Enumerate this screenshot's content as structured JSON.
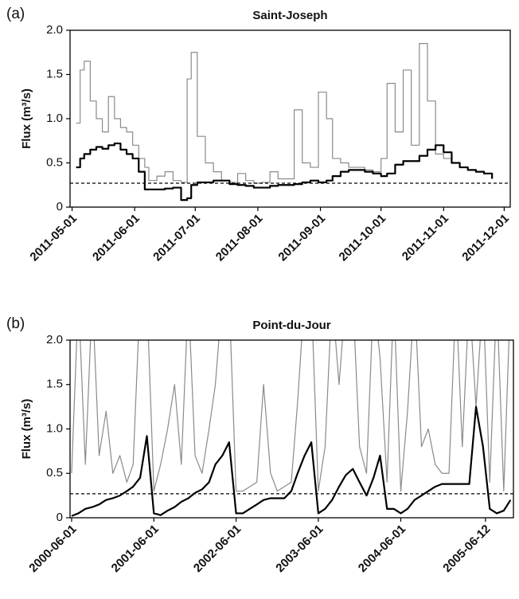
{
  "chart_data": [
    {
      "type": "line",
      "panel_label": "(a)",
      "title": "Saint-Joseph",
      "y_label": "Flux (m³/s)",
      "x": [
        "2011-05-03",
        "2011-05-05",
        "2011-05-07",
        "2011-05-10",
        "2011-05-13",
        "2011-05-16",
        "2011-05-19",
        "2011-05-22",
        "2011-05-25",
        "2011-05-28",
        "2011-05-31",
        "2011-06-03",
        "2011-06-06",
        "2011-06-08",
        "2011-06-12",
        "2011-06-16",
        "2011-06-20",
        "2011-06-24",
        "2011-06-27",
        "2011-06-29",
        "2011-07-02",
        "2011-07-06",
        "2011-07-10",
        "2011-07-14",
        "2011-07-18",
        "2011-07-22",
        "2011-07-26",
        "2011-07-30",
        "2011-08-03",
        "2011-08-07",
        "2011-08-11",
        "2011-08-15",
        "2011-08-19",
        "2011-08-23",
        "2011-08-27",
        "2011-08-31",
        "2011-09-04",
        "2011-09-07",
        "2011-09-11",
        "2011-09-15",
        "2011-09-19",
        "2011-09-23",
        "2011-09-27",
        "2011-10-01",
        "2011-10-04",
        "2011-10-08",
        "2011-10-12",
        "2011-10-16",
        "2011-10-20",
        "2011-10-24",
        "2011-10-28",
        "2011-11-01",
        "2011-11-05",
        "2011-11-09",
        "2011-11-13",
        "2011-11-17",
        "2011-11-21",
        "2011-11-25"
      ],
      "series": [
        {
          "color": "#8a8a8a",
          "step": true,
          "values": [
            0.95,
            1.55,
            1.65,
            1.2,
            1.0,
            0.85,
            1.25,
            1.0,
            0.9,
            0.85,
            0.7,
            0.55,
            0.45,
            0.3,
            0.35,
            0.4,
            0.3,
            0.28,
            1.45,
            1.75,
            0.8,
            0.5,
            0.4,
            0.3,
            0.28,
            0.38,
            0.3,
            0.27,
            0.28,
            0.4,
            0.32,
            0.32,
            1.1,
            0.5,
            0.45,
            1.3,
            1.0,
            0.55,
            0.5,
            0.45,
            0.45,
            0.42,
            0.4,
            0.55,
            1.4,
            0.85,
            1.55,
            0.7,
            1.85,
            1.2,
            0.6,
            0.55,
            0.5,
            0.45,
            0.42,
            0.4,
            0.38,
            0.33
          ]
        },
        {
          "color": "#000000",
          "step": true,
          "values": [
            0.45,
            0.55,
            0.6,
            0.65,
            0.68,
            0.66,
            0.7,
            0.72,
            0.65,
            0.6,
            0.55,
            0.4,
            0.2,
            0.2,
            0.2,
            0.21,
            0.22,
            0.08,
            0.1,
            0.25,
            0.28,
            0.28,
            0.3,
            0.3,
            0.26,
            0.25,
            0.24,
            0.22,
            0.22,
            0.24,
            0.25,
            0.25,
            0.26,
            0.28,
            0.3,
            0.28,
            0.3,
            0.35,
            0.4,
            0.42,
            0.42,
            0.4,
            0.38,
            0.35,
            0.38,
            0.48,
            0.52,
            0.52,
            0.58,
            0.65,
            0.7,
            0.62,
            0.5,
            0.45,
            0.42,
            0.4,
            0.38,
            0.32
          ]
        }
      ],
      "hline": 0.27,
      "xlim": [
        "2011-04-30",
        "2011-12-04"
      ],
      "xticks": [
        "2011-05-01",
        "2011-06-01",
        "2011-07-01",
        "2011-08-01",
        "2011-09-01",
        "2011-10-01",
        "2011-11-01",
        "2011-12-01"
      ],
      "ylim": [
        0,
        2
      ],
      "yticks": [
        0,
        0.5,
        {
          "value": 1,
          "label": "1.0"
        },
        1.5,
        {
          "value": 2,
          "label": "2.0"
        }
      ]
    },
    {
      "type": "line",
      "panel_label": "(b)",
      "title": "Point-du-Jour",
      "y_label": "Flux (m³/s)",
      "x": [
        "2000-06-01",
        "2000-07-01",
        "2000-08-01",
        "2000-09-01",
        "2000-10-01",
        "2000-11-01",
        "2000-12-01",
        "2001-01-01",
        "2001-02-01",
        "2001-03-01",
        "2001-04-01",
        "2001-05-01",
        "2001-06-01",
        "2001-07-01",
        "2001-08-01",
        "2001-09-01",
        "2001-10-01",
        "2001-11-01",
        "2001-12-01",
        "2002-01-01",
        "2002-02-01",
        "2002-03-01",
        "2002-04-01",
        "2002-05-01",
        "2002-06-01",
        "2002-07-01",
        "2002-08-01",
        "2002-09-01",
        "2002-10-01",
        "2002-11-01",
        "2002-12-01",
        "2003-01-01",
        "2003-02-01",
        "2003-03-01",
        "2003-04-01",
        "2003-05-01",
        "2003-06-01",
        "2003-07-01",
        "2003-08-01",
        "2003-09-01",
        "2003-10-01",
        "2003-11-01",
        "2003-12-01",
        "2004-01-01",
        "2004-02-01",
        "2004-03-01",
        "2004-04-01",
        "2004-05-01",
        "2004-06-01",
        "2004-07-01",
        "2004-08-01",
        "2004-09-01",
        "2004-10-01",
        "2004-11-01",
        "2004-12-01",
        "2005-01-01",
        "2005-02-01",
        "2005-03-01",
        "2005-04-01",
        "2005-05-01",
        "2005-06-01",
        "2005-07-01",
        "2005-08-01",
        "2005-09-01",
        "2005-10-01"
      ],
      "series": [
        {
          "color": "#8a8a8a",
          "step": false,
          "values": [
            0.5,
            2.5,
            0.6,
            2.5,
            0.7,
            1.2,
            0.5,
            0.7,
            0.4,
            0.6,
            2.5,
            2.5,
            0.3,
            0.6,
            1.0,
            1.5,
            0.6,
            2.5,
            0.7,
            0.5,
            1.0,
            1.5,
            2.5,
            2.5,
            0.3,
            0.3,
            0.35,
            0.4,
            1.5,
            0.5,
            0.3,
            0.35,
            0.4,
            1.3,
            2.5,
            2.5,
            0.3,
            0.8,
            2.5,
            1.5,
            2.5,
            2.5,
            0.8,
            0.5,
            2.5,
            1.8,
            0.4,
            2.5,
            0.3,
            1.2,
            2.5,
            0.8,
            1.0,
            0.6,
            0.5,
            0.5,
            2.5,
            0.8,
            2.5,
            1.25,
            2.5,
            0.4,
            2.5,
            0.3,
            2.5
          ]
        },
        {
          "color": "#000000",
          "step": false,
          "values": [
            0.02,
            0.05,
            0.1,
            0.12,
            0.15,
            0.2,
            0.22,
            0.25,
            0.3,
            0.35,
            0.45,
            0.92,
            0.05,
            0.03,
            0.08,
            0.12,
            0.18,
            0.22,
            0.28,
            0.32,
            0.4,
            0.6,
            0.7,
            0.85,
            0.05,
            0.05,
            0.1,
            0.15,
            0.2,
            0.22,
            0.22,
            0.22,
            0.3,
            0.5,
            0.7,
            0.85,
            0.05,
            0.1,
            0.2,
            0.35,
            0.48,
            0.55,
            0.4,
            0.25,
            0.45,
            0.7,
            0.1,
            0.1,
            0.05,
            0.1,
            0.2,
            0.25,
            0.3,
            0.35,
            0.38,
            0.38,
            0.38,
            0.38,
            0.38,
            1.25,
            0.8,
            0.1,
            0.05,
            0.08,
            0.2
          ]
        }
      ],
      "hline": 0.27,
      "xlim": [
        "2000-05-25",
        "2005-10-14"
      ],
      "xticks": [
        "2000-06-01",
        "2001-06-01",
        "2002-06-01",
        "2003-06-01",
        "2004-06-01",
        "2005-06-12"
      ],
      "ylim": [
        0,
        2
      ],
      "yticks": [
        0,
        0.5,
        {
          "value": 1,
          "label": "1.0"
        },
        1.5,
        {
          "value": 2,
          "label": "2.0"
        }
      ]
    }
  ]
}
